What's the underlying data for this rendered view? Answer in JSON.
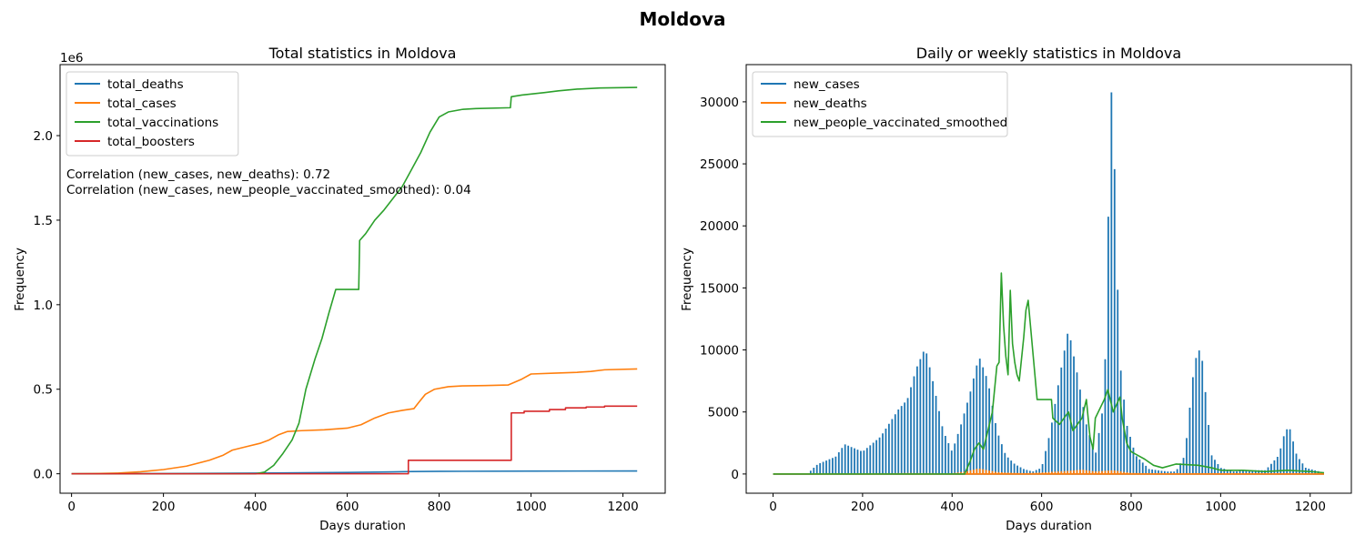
{
  "figure": {
    "suptitle": "Moldova"
  },
  "chart_data": [
    {
      "type": "line",
      "title": "Total statistics in Moldova",
      "xlabel": "Days duration",
      "ylabel": "Frequency",
      "y_offset_label": "1e6",
      "xlim": [
        -25,
        1292
      ],
      "ylim": [
        -0.115,
        2.42
      ],
      "y_unit_multiplier": 1000000,
      "x_ticks": [
        0,
        200,
        400,
        600,
        800,
        1000,
        1200
      ],
      "x_tick_labels": [
        "0",
        "200",
        "400",
        "600",
        "800",
        "1000",
        "1200"
      ],
      "y_ticks": [
        0,
        0.5,
        1.0,
        1.5,
        2.0
      ],
      "y_tick_labels": [
        "0.0",
        "0.5",
        "1.0",
        "1.5",
        "2.0"
      ],
      "legend_position": "upper-left",
      "annotations": [
        "Correlation (new_cases, new_deaths): 0.72",
        "Correlation (new_cases, new_people_vaccinated_smoothed): 0.04"
      ],
      "series": [
        {
          "name": "total_deaths",
          "color": "#1f77b4",
          "step": false,
          "points": [
            [
              0,
              0
            ],
            [
              200,
              0.001
            ],
            [
              400,
              0.004
            ],
            [
              600,
              0.008
            ],
            [
              700,
              0.011
            ],
            [
              740,
              0.013
            ],
            [
              800,
              0.0145
            ],
            [
              1000,
              0.016
            ],
            [
              1231,
              0.0165
            ]
          ]
        },
        {
          "name": "total_cases",
          "color": "#ff7f0e",
          "step": false,
          "points": [
            [
              0,
              0
            ],
            [
              50,
              0.001
            ],
            [
              100,
              0.004
            ],
            [
              150,
              0.012
            ],
            [
              200,
              0.025
            ],
            [
              250,
              0.045
            ],
            [
              300,
              0.08
            ],
            [
              330,
              0.11
            ],
            [
              350,
              0.14
            ],
            [
              380,
              0.16
            ],
            [
              410,
              0.18
            ],
            [
              430,
              0.2
            ],
            [
              450,
              0.23
            ],
            [
              470,
              0.25
            ],
            [
              500,
              0.255
            ],
            [
              550,
              0.26
            ],
            [
              600,
              0.27
            ],
            [
              630,
              0.29
            ],
            [
              660,
              0.33
            ],
            [
              690,
              0.36
            ],
            [
              720,
              0.375
            ],
            [
              745,
              0.385
            ],
            [
              755,
              0.42
            ],
            [
              770,
              0.47
            ],
            [
              790,
              0.5
            ],
            [
              820,
              0.515
            ],
            [
              850,
              0.52
            ],
            [
              900,
              0.522
            ],
            [
              950,
              0.525
            ],
            [
              980,
              0.56
            ],
            [
              1000,
              0.59
            ],
            [
              1050,
              0.595
            ],
            [
              1100,
              0.6
            ],
            [
              1130,
              0.605
            ],
            [
              1160,
              0.615
            ],
            [
              1231,
              0.62
            ]
          ]
        },
        {
          "name": "total_vaccinations",
          "color": "#2ca02c",
          "step": false,
          "points": [
            [
              0,
              0
            ],
            [
              400,
              0
            ],
            [
              420,
              0.01
            ],
            [
              440,
              0.05
            ],
            [
              460,
              0.12
            ],
            [
              480,
              0.2
            ],
            [
              495,
              0.3
            ],
            [
              510,
              0.5
            ],
            [
              530,
              0.68
            ],
            [
              545,
              0.8
            ],
            [
              560,
              0.95
            ],
            [
              575,
              1.09
            ],
            [
              625,
              1.09
            ],
            [
              627,
              1.38
            ],
            [
              640,
              1.42
            ],
            [
              660,
              1.5
            ],
            [
              680,
              1.56
            ],
            [
              700,
              1.63
            ],
            [
              720,
              1.7
            ],
            [
              740,
              1.8
            ],
            [
              760,
              1.9
            ],
            [
              780,
              2.02
            ],
            [
              800,
              2.11
            ],
            [
              820,
              2.14
            ],
            [
              850,
              2.155
            ],
            [
              880,
              2.16
            ],
            [
              955,
              2.165
            ],
            [
              957,
              2.23
            ],
            [
              980,
              2.24
            ],
            [
              1030,
              2.255
            ],
            [
              1060,
              2.265
            ],
            [
              1100,
              2.275
            ],
            [
              1150,
              2.282
            ],
            [
              1231,
              2.285
            ]
          ]
        },
        {
          "name": "total_boosters",
          "color": "#d62728",
          "step": true,
          "points": [
            [
              0,
              0
            ],
            [
              733,
              0
            ],
            [
              733,
              0.08
            ],
            [
              957,
              0.08
            ],
            [
              957,
              0.36
            ],
            [
              985,
              0.36
            ],
            [
              985,
              0.37
            ],
            [
              1040,
              0.37
            ],
            [
              1040,
              0.38
            ],
            [
              1075,
              0.38
            ],
            [
              1075,
              0.39
            ],
            [
              1120,
              0.39
            ],
            [
              1120,
              0.395
            ],
            [
              1160,
              0.395
            ],
            [
              1160,
              0.4
            ],
            [
              1231,
              0.4
            ]
          ]
        }
      ]
    },
    {
      "type": "line",
      "title": "Daily or weekly statistics in Moldova",
      "xlabel": "Days duration",
      "ylabel": "Frequency",
      "xlim": [
        -60,
        1292
      ],
      "ylim": [
        -1550,
        33000
      ],
      "x_ticks": [
        0,
        200,
        400,
        600,
        800,
        1000,
        1200
      ],
      "x_tick_labels": [
        "0",
        "200",
        "400",
        "600",
        "800",
        "1000",
        "1200"
      ],
      "y_ticks": [
        0,
        5000,
        10000,
        15000,
        20000,
        25000,
        30000
      ],
      "y_tick_labels": [
        "0",
        "5000",
        "10000",
        "15000",
        "20000",
        "25000",
        "30000"
      ],
      "legend_position": "upper-left",
      "series": [
        {
          "name": "new_cases",
          "color": "#1f77b4",
          "style": "spikes",
          "spike_spacing": 7,
          "envelope": [
            [
              0,
              0
            ],
            [
              75,
              0
            ],
            [
              85,
              300
            ],
            [
              100,
              800
            ],
            [
              140,
              1400
            ],
            [
              160,
              2400
            ],
            [
              200,
              1800
            ],
            [
              240,
              3000
            ],
            [
              280,
              5200
            ],
            [
              300,
              6000
            ],
            [
              320,
              8500
            ],
            [
              340,
              10200
            ],
            [
              360,
              7000
            ],
            [
              380,
              3500
            ],
            [
              400,
              1800
            ],
            [
              420,
              4000
            ],
            [
              440,
              6500
            ],
            [
              460,
              9500
            ],
            [
              480,
              7500
            ],
            [
              500,
              3500
            ],
            [
              520,
              1500
            ],
            [
              540,
              800
            ],
            [
              560,
              400
            ],
            [
              580,
              200
            ],
            [
              600,
              500
            ],
            [
              620,
              3500
            ],
            [
              640,
              7800
            ],
            [
              660,
              11700
            ],
            [
              680,
              8000
            ],
            [
              700,
              4000
            ],
            [
              720,
              1500
            ],
            [
              740,
              6000
            ],
            [
              748,
              19000
            ],
            [
              755,
              31200
            ],
            [
              760,
              29000
            ],
            [
              768,
              17200
            ],
            [
              775,
              9000
            ],
            [
              790,
              4000
            ],
            [
              810,
              1500
            ],
            [
              840,
              400
            ],
            [
              880,
              200
            ],
            [
              900,
              200
            ],
            [
              920,
              1500
            ],
            [
              940,
              8500
            ],
            [
              950,
              10200
            ],
            [
              960,
              9000
            ],
            [
              970,
              5000
            ],
            [
              980,
              1500
            ],
            [
              1000,
              500
            ],
            [
              1030,
              200
            ],
            [
              1060,
              300
            ],
            [
              1100,
              300
            ],
            [
              1130,
              1500
            ],
            [
              1145,
              3600
            ],
            [
              1155,
              3600
            ],
            [
              1170,
              1500
            ],
            [
              1190,
              500
            ],
            [
              1231,
              100
            ]
          ]
        },
        {
          "name": "new_deaths",
          "color": "#ff7f0e",
          "style": "spikes",
          "spike_spacing": 7,
          "envelope": [
            [
              0,
              0
            ],
            [
              100,
              0
            ],
            [
              200,
              40
            ],
            [
              300,
              80
            ],
            [
              400,
              60
            ],
            [
              430,
              200
            ],
            [
              460,
              450
            ],
            [
              500,
              150
            ],
            [
              560,
              60
            ],
            [
              600,
              120
            ],
            [
              660,
              250
            ],
            [
              690,
              350
            ],
            [
              720,
              200
            ],
            [
              760,
              300
            ],
            [
              800,
              80
            ],
            [
              900,
              30
            ],
            [
              1000,
              20
            ],
            [
              1100,
              10
            ],
            [
              1231,
              5
            ]
          ]
        },
        {
          "name": "new_people_vaccinated_smoothed",
          "color": "#2ca02c",
          "style": "line",
          "points": [
            [
              0,
              0
            ],
            [
              428,
              0
            ],
            [
              440,
              1000
            ],
            [
              450,
              2000
            ],
            [
              460,
              2500
            ],
            [
              470,
              2000
            ],
            [
              480,
              3500
            ],
            [
              490,
              5000
            ],
            [
              500,
              8700
            ],
            [
              505,
              9000
            ],
            [
              510,
              16200
            ],
            [
              515,
              12000
            ],
            [
              520,
              9500
            ],
            [
              525,
              8000
            ],
            [
              530,
              14800
            ],
            [
              535,
              10500
            ],
            [
              540,
              9000
            ],
            [
              545,
              8000
            ],
            [
              550,
              7500
            ],
            [
              560,
              11000
            ],
            [
              565,
              13200
            ],
            [
              570,
              14000
            ],
            [
              575,
              12000
            ],
            [
              580,
              10000
            ],
            [
              585,
              8000
            ],
            [
              590,
              6000
            ],
            [
              622,
              6000
            ],
            [
              625,
              4500
            ],
            [
              640,
              4000
            ],
            [
              660,
              5000
            ],
            [
              670,
              3500
            ],
            [
              680,
              4000
            ],
            [
              690,
              4500
            ],
            [
              700,
              6000
            ],
            [
              708,
              3000
            ],
            [
              715,
              2000
            ],
            [
              720,
              4500
            ],
            [
              740,
              6000
            ],
            [
              748,
              6800
            ],
            [
              760,
              5000
            ],
            [
              775,
              6200
            ],
            [
              780,
              4500
            ],
            [
              790,
              2500
            ],
            [
              800,
              1800
            ],
            [
              815,
              1500
            ],
            [
              830,
              1200
            ],
            [
              850,
              700
            ],
            [
              870,
              500
            ],
            [
              900,
              800
            ],
            [
              950,
              700
            ],
            [
              980,
              500
            ],
            [
              1000,
              300
            ],
            [
              1050,
              300
            ],
            [
              1100,
              200
            ],
            [
              1150,
              300
            ],
            [
              1200,
              200
            ],
            [
              1231,
              100
            ]
          ]
        }
      ]
    }
  ]
}
